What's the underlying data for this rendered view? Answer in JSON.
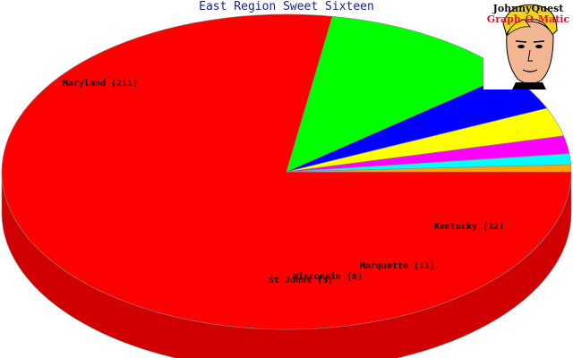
{
  "chart_data": {
    "type": "pie",
    "title": "East Region Sweet Sixteen",
    "three_d": true,
    "slices": [
      {
        "label": "Maryland (211)",
        "value": 211,
        "color": "#ff0000"
      },
      {
        "label": "Kentucky (32)",
        "value": 32,
        "color": "#00ff00"
      },
      {
        "label": "Marquette (11)",
        "value": 11,
        "color": "#0000ff"
      },
      {
        "label": "Wisconsin (8)",
        "value": 8,
        "color": "#ffff00"
      },
      {
        "label": "",
        "value": 5,
        "color": "#ff00ff"
      },
      {
        "label": "St Johns (3)",
        "value": 3,
        "color": "#00ffff"
      },
      {
        "label": "",
        "value": 2,
        "color": "#ffa500"
      }
    ]
  },
  "logo": {
    "line1": "JohnnyQuest",
    "line2": "Graph-O-Matic"
  }
}
